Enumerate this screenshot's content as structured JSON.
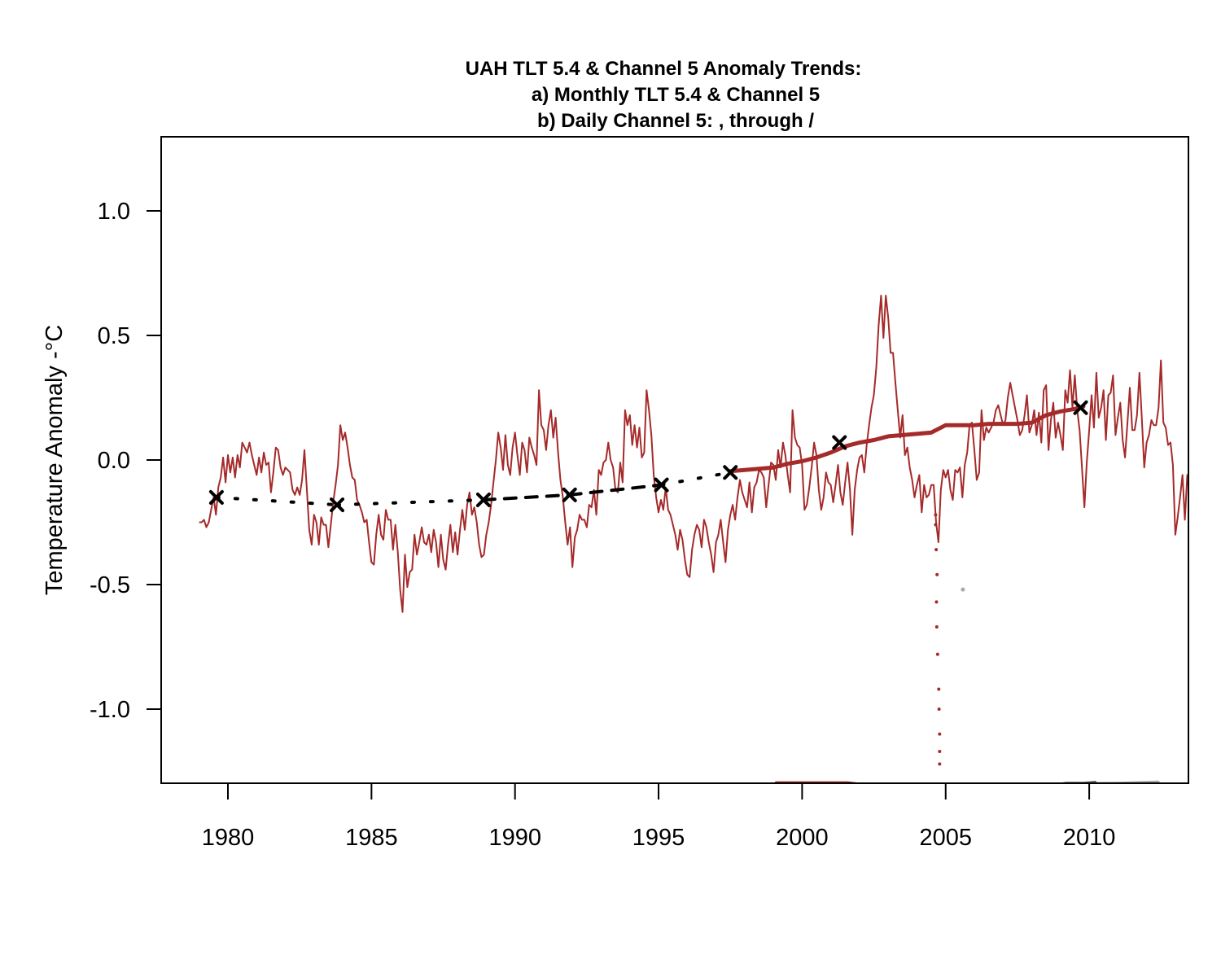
{
  "chart_data": {
    "type": "line",
    "title": [
      "UAH TLT 5.4 & Channel 5 Anomaly Trends:",
      "a) Monthly TLT 5.4 & Channel 5",
      "b) Daily Channel 5: ,  through /"
    ],
    "xlabel": "",
    "ylabel": "Temperature Anomaly -°C",
    "xlim": [
      1977.5,
      2013.2
    ],
    "ylim": [
      -1.3,
      1.3
    ],
    "x_ticks": [
      1980,
      1985,
      1990,
      1995,
      2000,
      2005,
      2010
    ],
    "x_tick_labels": [
      "1980",
      "1985",
      "1990",
      "1995",
      "2000",
      "2005",
      "2010"
    ],
    "y_ticks": [
      1.0,
      0.5,
      0.0,
      -0.5,
      -1.0
    ],
    "y_tick_labels": [
      "1.0",
      "0.5",
      "0.0",
      "-0.5",
      "-1.0"
    ],
    "grid": false,
    "legend": "none",
    "colors": {
      "monthly": "#A52A2A",
      "trend_black": "#000000",
      "daily_red": "#A52A2A",
      "daily_gray": "#A8A8A8",
      "daily_dark_gray": "#606060"
    },
    "monthly_series": {
      "name": "Monthly TLT 5.4 anomaly",
      "start": 1979.0,
      "step": 0.08333,
      "values": [
        -0.25,
        -0.25,
        -0.24,
        -0.27,
        -0.25,
        -0.2,
        -0.15,
        -0.22,
        -0.11,
        -0.07,
        0.01,
        -0.09,
        0.02,
        -0.05,
        0.01,
        -0.07,
        0.02,
        -0.03,
        0.07,
        0.05,
        0.03,
        0.07,
        0.02,
        -0.02,
        -0.06,
        0.01,
        -0.05,
        0.03,
        -0.02,
        -0.01,
        -0.13,
        -0.05,
        0.05,
        0.04,
        -0.03,
        -0.06,
        -0.03,
        -0.04,
        -0.05,
        -0.12,
        -0.14,
        -0.11,
        -0.14,
        -0.08,
        0.04,
        -0.12,
        -0.28,
        -0.34,
        -0.22,
        -0.25,
        -0.34,
        -0.23,
        -0.26,
        -0.26,
        -0.35,
        -0.26,
        -0.17,
        -0.1,
        -0.02,
        0.14,
        0.08,
        0.11,
        0.05,
        -0.02,
        -0.07,
        -0.08,
        -0.16,
        -0.18,
        -0.21,
        -0.25,
        -0.24,
        -0.33,
        -0.41,
        -0.42,
        -0.3,
        -0.22,
        -0.3,
        -0.32,
        -0.2,
        -0.24,
        -0.24,
        -0.36,
        -0.26,
        -0.37,
        -0.52,
        -0.61,
        -0.38,
        -0.51,
        -0.45,
        -0.44,
        -0.3,
        -0.38,
        -0.33,
        -0.27,
        -0.33,
        -0.34,
        -0.3,
        -0.37,
        -0.28,
        -0.33,
        -0.43,
        -0.3,
        -0.4,
        -0.44,
        -0.34,
        -0.26,
        -0.37,
        -0.29,
        -0.38,
        -0.28,
        -0.2,
        -0.28,
        -0.18,
        -0.13,
        -0.22,
        -0.19,
        -0.25,
        -0.34,
        -0.39,
        -0.38,
        -0.3,
        -0.25,
        -0.18,
        -0.09,
        0.0,
        0.11,
        0.05,
        -0.04,
        0.1,
        -0.02,
        -0.06,
        0.05,
        0.11,
        0.02,
        -0.06,
        0.07,
        0.04,
        -0.05,
        0.09,
        0.05,
        0.02,
        -0.02,
        0.28,
        0.14,
        0.12,
        0.04,
        0.14,
        0.2,
        0.09,
        0.17,
        0.03,
        -0.08,
        -0.15,
        -0.25,
        -0.34,
        -0.27,
        -0.43,
        -0.31,
        -0.28,
        -0.22,
        -0.24,
        -0.24,
        -0.27,
        -0.18,
        -0.19,
        -0.12,
        -0.22,
        -0.04,
        -0.06,
        -0.01,
        0.0,
        0.07,
        0.0,
        -0.03,
        -0.12,
        -0.13,
        -0.01,
        -0.09,
        0.2,
        0.14,
        0.18,
        0.06,
        0.14,
        0.05,
        0.13,
        0.01,
        0.03,
        0.28,
        0.2,
        0.1,
        -0.06,
        -0.15,
        -0.21,
        -0.16,
        -0.2,
        -0.11,
        -0.2,
        -0.22,
        -0.26,
        -0.3,
        -0.36,
        -0.28,
        -0.32,
        -0.4,
        -0.46,
        -0.47,
        -0.36,
        -0.3,
        -0.26,
        -0.28,
        -0.35,
        -0.24,
        -0.27,
        -0.33,
        -0.38,
        -0.45,
        -0.33,
        -0.3,
        -0.24,
        -0.33,
        -0.41,
        -0.28,
        -0.22,
        -0.18,
        -0.24,
        -0.15,
        -0.08,
        -0.13,
        -0.16,
        -0.19,
        -0.09,
        -0.21,
        -0.11,
        -0.09,
        -0.04,
        -0.05,
        -0.07,
        -0.19,
        -0.1,
        -0.01,
        -0.02,
        -0.08,
        0.04,
        -0.03,
        0.07,
        0.02,
        -0.06,
        -0.13,
        0.2,
        0.09,
        0.06,
        0.05,
        -0.02,
        -0.2,
        -0.18,
        -0.11,
        -0.03,
        0.07,
        0.02,
        -0.12,
        -0.2,
        -0.15,
        -0.05,
        -0.09,
        -0.1,
        -0.17,
        -0.1,
        -0.02,
        -0.13,
        -0.18,
        -0.09,
        -0.01,
        -0.12,
        -0.3,
        -0.12,
        -0.04,
        0.01,
        0.02,
        -0.05,
        0.06,
        0.14,
        0.21,
        0.26,
        0.37,
        0.54,
        0.66,
        0.49,
        0.66,
        0.57,
        0.43,
        0.43,
        0.31,
        0.2,
        0.09,
        0.18,
        0.02,
        0.05,
        -0.03,
        -0.08,
        -0.15,
        -0.1,
        -0.06,
        -0.21,
        -0.1,
        -0.15,
        -0.14,
        -0.1,
        -0.1,
        -0.25,
        -0.33,
        -0.12,
        -0.04,
        -0.07,
        -0.04,
        -0.12,
        -0.16,
        -0.04,
        -0.05,
        -0.03,
        -0.15,
        -0.02,
        0.03,
        0.14,
        0.15,
        0.04,
        -0.08,
        -0.05,
        0.2,
        0.08,
        0.13,
        0.11,
        0.13,
        0.15,
        0.2,
        0.22,
        0.18,
        0.14,
        0.16,
        0.25,
        0.31,
        0.26,
        0.21,
        0.16,
        0.1,
        0.12,
        0.18,
        0.26,
        0.11,
        0.14,
        0.2,
        0.1,
        0.19,
        0.07,
        0.28,
        0.3,
        0.04,
        0.16,
        0.23,
        0.09,
        0.15,
        0.1,
        0.04,
        0.28,
        0.23,
        0.36,
        0.21,
        0.34,
        0.2,
        0.12,
        -0.03,
        -0.19,
        -0.01,
        0.12,
        0.26,
        0.13,
        0.35,
        0.17,
        0.21,
        0.28,
        0.08,
        0.26,
        0.27,
        0.34,
        0.1,
        0.17,
        0.23,
        0.08,
        0.01,
        0.15,
        0.29,
        0.12,
        0.12,
        0.18,
        0.35,
        0.17,
        -0.03,
        0.07,
        0.1,
        0.16,
        0.14,
        0.14,
        0.21,
        0.4,
        0.15,
        0.13,
        0.06,
        0.07,
        -0.02,
        -0.3,
        -0.23,
        -0.15,
        -0.06,
        -0.24,
        -0.06,
        -0.12,
        0.04,
        0.04,
        0.05,
        0.1,
        0.03,
        0.02,
        0.05,
        0.04,
        0.03,
        0.12,
        0.14,
        0.12,
        0.13,
        0.12,
        -0.01,
        0.14,
        0.35,
        0.3,
        0.35,
        0.18,
        0.27,
        0.35,
        0.26,
        0.34,
        0.54,
        0.52,
        0.55,
        0.4,
        0.46,
        0.43,
        0.45,
        0.47,
        0.28,
        0.26,
        0.2,
        0.06,
        0.0,
        -0.01,
        -0.02,
        -0.1,
        0.12
      ]
    },
    "channel5_running_trend": {
      "name": "Channel 5 cumulative trend",
      "x": [
        1997.5,
        1998.0,
        1998.5,
        1999.0,
        1999.5,
        2000.0,
        2000.5,
        2001.0,
        2001.5,
        2002.0,
        2002.5,
        2003.0,
        2003.5,
        2004.0,
        2004.5,
        2005.0,
        2005.5,
        2006.0,
        2006.5,
        2007.0,
        2007.5,
        2008.0,
        2008.5,
        2009.0,
        2009.5,
        2009.8
      ],
      "y": [
        -0.045,
        -0.04,
        -0.035,
        -0.03,
        -0.015,
        -0.005,
        0.01,
        0.03,
        0.055,
        0.07,
        0.08,
        0.095,
        0.1,
        0.105,
        0.11,
        0.14,
        0.14,
        0.14,
        0.145,
        0.145,
        0.145,
        0.15,
        0.18,
        0.195,
        0.205,
        0.215
      ]
    },
    "tlt_trend_segments": [
      {
        "style": "dotted",
        "x": [
          1979.6,
          1983.8
        ],
        "y": [
          -0.15,
          -0.18
        ]
      },
      {
        "style": "dotted",
        "x": [
          1983.8,
          1988.9
        ],
        "y": [
          -0.18,
          -0.16
        ]
      },
      {
        "style": "dashed",
        "x": [
          1988.9,
          1991.9
        ],
        "y": [
          -0.16,
          -0.14
        ]
      },
      {
        "style": "dashed",
        "x": [
          1991.9,
          1995.1
        ],
        "y": [
          -0.14,
          -0.1
        ]
      },
      {
        "style": "dotted",
        "x": [
          1995.1,
          1997.5
        ],
        "y": [
          -0.1,
          -0.05
        ]
      }
    ],
    "trend_markers": [
      {
        "x": 1979.6,
        "y": -0.15
      },
      {
        "x": 1983.8,
        "y": -0.18
      },
      {
        "x": 1988.9,
        "y": -0.16
      },
      {
        "x": 1991.9,
        "y": -0.14
      },
      {
        "x": 1995.1,
        "y": -0.1
      },
      {
        "x": 1997.5,
        "y": -0.05
      },
      {
        "x": 2001.3,
        "y": 0.07
      },
      {
        "x": 2009.7,
        "y": 0.21
      }
    ],
    "daily_dotted_points": {
      "name": "Daily Channel 5 (sparse)",
      "x": [
        2004.65,
        2004.65,
        2004.67,
        2004.7,
        2004.68,
        2004.69,
        2004.72,
        2004.76,
        2004.77,
        2004.79,
        2004.79,
        2004.79
      ],
      "y": [
        -0.22,
        -0.26,
        -0.36,
        -0.46,
        -0.57,
        -0.67,
        -0.78,
        -0.92,
        -1.0,
        -1.1,
        -1.17,
        -1.22
      ]
    },
    "daily_gray_point": {
      "x": 2005.6,
      "y": -0.52
    },
    "daily_bottom_segments": [
      {
        "color": "daily_red",
        "x": [
          1999.1,
          2001.6,
          2002.0,
          2003.5,
          2004.8
        ],
        "y": [
          -1.296,
          -1.296,
          -1.302,
          -1.305,
          -1.302
        ]
      },
      {
        "color": "daily_gray",
        "x": [
          2004.8,
          2006.5,
          2008.0,
          2009.5,
          2011.0,
          2012.4
        ],
        "y": [
          -1.305,
          -1.305,
          -1.303,
          -1.3,
          -1.298,
          -1.293
        ]
      },
      {
        "color": "daily_dark_gray",
        "x": [
          2008.3,
          2008.8,
          2009.2,
          2009.8,
          2010.2
        ],
        "y": [
          -1.312,
          -1.306,
          -1.298,
          -1.298,
          -1.294
        ]
      }
    ]
  }
}
